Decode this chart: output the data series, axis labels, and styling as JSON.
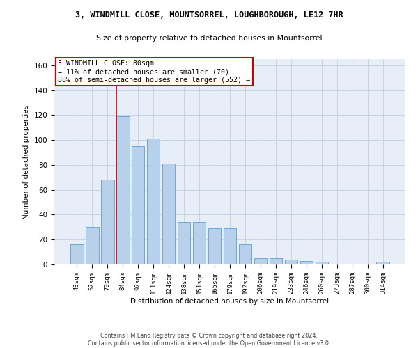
{
  "title": "3, WINDMILL CLOSE, MOUNTSORREL, LOUGHBOROUGH, LE12 7HR",
  "subtitle": "Size of property relative to detached houses in Mountsorrel",
  "xlabel": "Distribution of detached houses by size in Mountsorrel",
  "ylabel": "Number of detached properties",
  "footer1": "Contains HM Land Registry data © Crown copyright and database right 2024.",
  "footer2": "Contains public sector information licensed under the Open Government Licence v3.0.",
  "bar_labels": [
    "43sqm",
    "57sqm",
    "70sqm",
    "84sqm",
    "97sqm",
    "111sqm",
    "124sqm",
    "138sqm",
    "151sqm",
    "165sqm",
    "179sqm",
    "192sqm",
    "206sqm",
    "219sqm",
    "233sqm",
    "246sqm",
    "260sqm",
    "273sqm",
    "287sqm",
    "300sqm",
    "314sqm"
  ],
  "bar_values": [
    16,
    30,
    68,
    119,
    95,
    101,
    81,
    34,
    34,
    29,
    29,
    16,
    5,
    5,
    4,
    3,
    2,
    0,
    0,
    0,
    2
  ],
  "bar_color": "#b8d0ea",
  "bar_edge_color": "#6aaad4",
  "grid_color": "#c8d4e8",
  "background_color": "#e8eef8",
  "annotation_box_color": "#cc0000",
  "property_line_label": "3 WINDMILL CLOSE: 80sqm",
  "annotation_line1": "← 11% of detached houses are smaller (70)",
  "annotation_line2": "88% of semi-detached houses are larger (552) →",
  "ylim": [
    0,
    165
  ],
  "yticks": [
    0,
    20,
    40,
    60,
    80,
    100,
    120,
    140,
    160
  ],
  "line_index": 2.58
}
